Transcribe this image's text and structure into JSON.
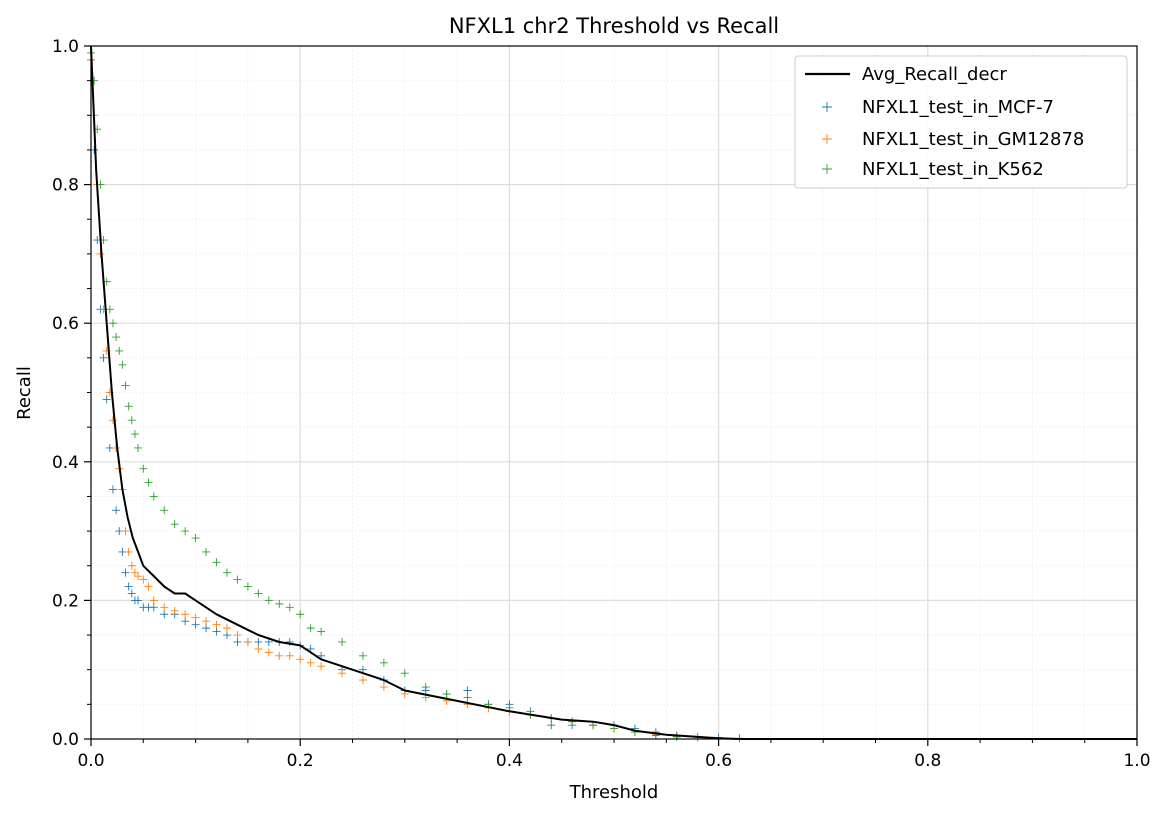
{
  "chart_data": {
    "type": "scatter",
    "title": "NFXL1 chr2 Threshold vs Recall",
    "xlabel": "Threshold",
    "ylabel": "Recall",
    "xlim": [
      0.0,
      1.0
    ],
    "ylim": [
      0.0,
      1.0
    ],
    "xticks": [
      "0.0",
      "0.2",
      "0.4",
      "0.6",
      "0.8",
      "1.0"
    ],
    "yticks": [
      "0.0",
      "0.2",
      "0.4",
      "0.6",
      "0.8",
      "1.0"
    ],
    "grid": true,
    "legend_position": "top-right",
    "line_series": [
      {
        "name": "Avg_Recall_decr",
        "color": "#000000",
        "x": [
          0.0,
          0.005,
          0.01,
          0.015,
          0.02,
          0.025,
          0.03,
          0.035,
          0.04,
          0.045,
          0.05,
          0.06,
          0.07,
          0.08,
          0.09,
          0.1,
          0.12,
          0.14,
          0.16,
          0.18,
          0.2,
          0.22,
          0.25,
          0.28,
          0.3,
          0.35,
          0.4,
          0.45,
          0.48,
          0.5,
          0.52,
          0.55,
          0.58,
          0.6,
          0.62,
          0.7,
          0.8,
          1.0
        ],
        "y": [
          1.0,
          0.82,
          0.7,
          0.6,
          0.5,
          0.42,
          0.36,
          0.32,
          0.29,
          0.27,
          0.25,
          0.235,
          0.22,
          0.21,
          0.21,
          0.2,
          0.18,
          0.165,
          0.15,
          0.14,
          0.135,
          0.115,
          0.1,
          0.085,
          0.07,
          0.055,
          0.04,
          0.028,
          0.025,
          0.02,
          0.012,
          0.006,
          0.003,
          0.001,
          0.0,
          0.0,
          0.0,
          0.0
        ]
      }
    ],
    "series": [
      {
        "name": "NFXL1_test_in_MCF-7",
        "color": "#1f77b4",
        "x": [
          0.0,
          0.003,
          0.006,
          0.009,
          0.012,
          0.015,
          0.018,
          0.021,
          0.024,
          0.027,
          0.03,
          0.033,
          0.036,
          0.039,
          0.042,
          0.045,
          0.05,
          0.055,
          0.06,
          0.07,
          0.08,
          0.09,
          0.1,
          0.11,
          0.12,
          0.13,
          0.14,
          0.15,
          0.16,
          0.17,
          0.18,
          0.19,
          0.2,
          0.21,
          0.22,
          0.24,
          0.26,
          0.28,
          0.3,
          0.32,
          0.34,
          0.36,
          0.38,
          0.4,
          0.42,
          0.44,
          0.46,
          0.48,
          0.5,
          0.52,
          0.54,
          0.56,
          0.58,
          0.6,
          0.62
        ],
        "y": [
          0.98,
          0.85,
          0.72,
          0.62,
          0.55,
          0.49,
          0.42,
          0.36,
          0.33,
          0.3,
          0.27,
          0.24,
          0.22,
          0.21,
          0.2,
          0.2,
          0.19,
          0.19,
          0.19,
          0.18,
          0.18,
          0.17,
          0.165,
          0.16,
          0.155,
          0.15,
          0.14,
          0.14,
          0.14,
          0.14,
          0.14,
          0.14,
          0.135,
          0.13,
          0.12,
          0.1,
          0.1,
          0.085,
          0.07,
          0.07,
          0.065,
          0.07,
          0.05,
          0.05,
          0.04,
          0.02,
          0.02,
          0.02,
          0.02,
          0.015,
          0.01,
          0.005,
          0.003,
          0.002,
          0.001
        ]
      },
      {
        "name": "NFXL1_test_in_GM12878",
        "color": "#ff7f0e",
        "x": [
          0.0,
          0.003,
          0.006,
          0.009,
          0.012,
          0.015,
          0.018,
          0.021,
          0.024,
          0.027,
          0.03,
          0.033,
          0.036,
          0.039,
          0.042,
          0.045,
          0.05,
          0.055,
          0.06,
          0.07,
          0.08,
          0.09,
          0.1,
          0.11,
          0.12,
          0.13,
          0.14,
          0.15,
          0.16,
          0.17,
          0.18,
          0.19,
          0.2,
          0.21,
          0.22,
          0.24,
          0.26,
          0.28,
          0.3,
          0.32,
          0.34,
          0.36,
          0.38,
          0.4,
          0.42,
          0.44,
          0.46,
          0.48,
          0.5,
          0.52,
          0.54,
          0.56,
          0.58
        ],
        "y": [
          0.98,
          0.9,
          0.8,
          0.7,
          0.62,
          0.56,
          0.5,
          0.46,
          0.42,
          0.39,
          0.36,
          0.3,
          0.27,
          0.25,
          0.24,
          0.235,
          0.23,
          0.22,
          0.2,
          0.19,
          0.185,
          0.18,
          0.175,
          0.17,
          0.165,
          0.16,
          0.15,
          0.14,
          0.13,
          0.125,
          0.12,
          0.12,
          0.115,
          0.11,
          0.105,
          0.095,
          0.085,
          0.075,
          0.065,
          0.06,
          0.055,
          0.05,
          0.045,
          0.04,
          0.035,
          0.03,
          0.025,
          0.02,
          0.015,
          0.01,
          0.006,
          0.004,
          0.002
        ]
      },
      {
        "name": "NFXL1_test_in_K562",
        "color": "#2ca02c",
        "x": [
          0.0,
          0.003,
          0.006,
          0.009,
          0.012,
          0.015,
          0.018,
          0.021,
          0.024,
          0.027,
          0.03,
          0.033,
          0.036,
          0.039,
          0.042,
          0.045,
          0.05,
          0.055,
          0.06,
          0.07,
          0.08,
          0.09,
          0.1,
          0.11,
          0.12,
          0.13,
          0.14,
          0.15,
          0.16,
          0.17,
          0.18,
          0.19,
          0.2,
          0.21,
          0.22,
          0.24,
          0.26,
          0.28,
          0.3,
          0.32,
          0.34,
          0.36,
          0.38,
          0.4,
          0.42,
          0.44,
          0.46,
          0.48,
          0.5,
          0.52,
          0.54,
          0.56
        ],
        "y": [
          0.99,
          0.95,
          0.88,
          0.8,
          0.72,
          0.66,
          0.62,
          0.6,
          0.58,
          0.56,
          0.54,
          0.51,
          0.48,
          0.46,
          0.44,
          0.42,
          0.39,
          0.37,
          0.35,
          0.33,
          0.31,
          0.3,
          0.29,
          0.27,
          0.255,
          0.24,
          0.23,
          0.22,
          0.21,
          0.2,
          0.195,
          0.19,
          0.18,
          0.16,
          0.155,
          0.14,
          0.12,
          0.11,
          0.095,
          0.075,
          0.065,
          0.06,
          0.05,
          0.045,
          0.035,
          0.03,
          0.025,
          0.02,
          0.015,
          0.01,
          0.005,
          0.003
        ]
      }
    ]
  }
}
